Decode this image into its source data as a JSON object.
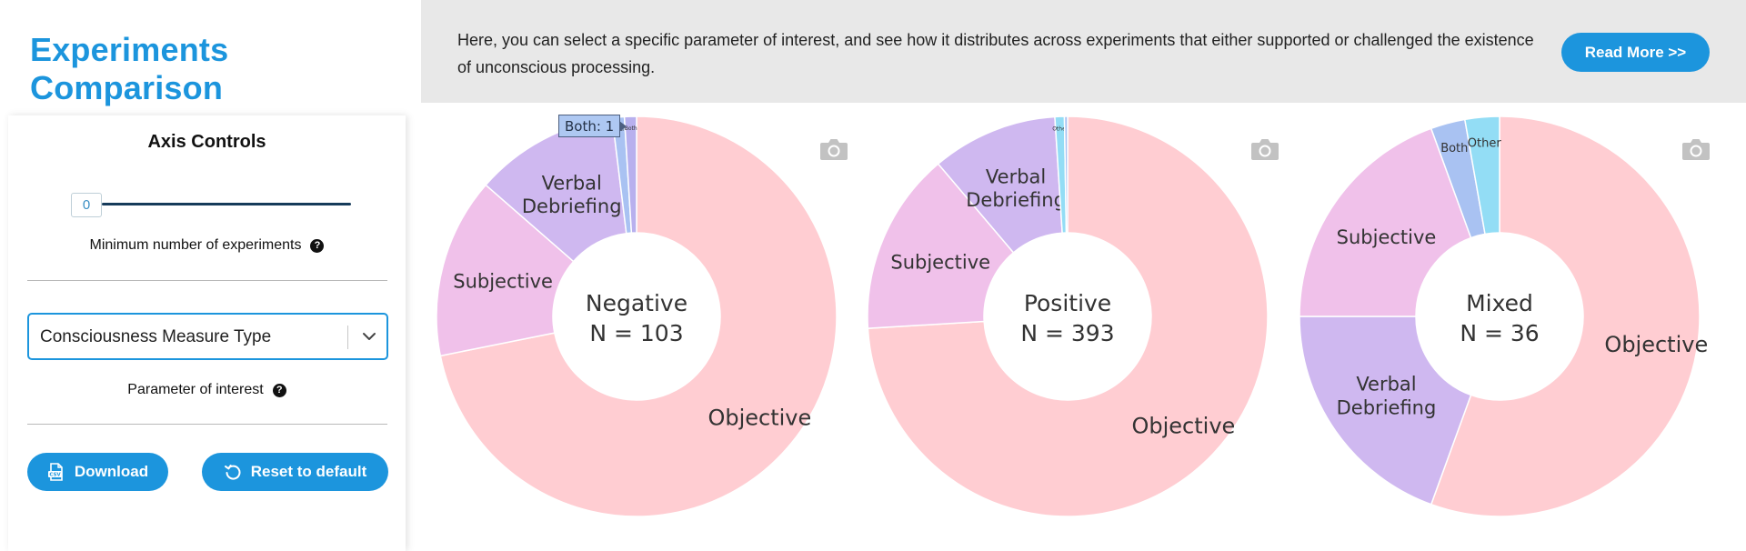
{
  "header": {
    "title": "Experiments Comparison",
    "intro": "Here, you can select a specific parameter of interest, and see how it distributes across experiments that either supported or challenged the existence of unconscious processing.",
    "read_more_label": "Read More >>"
  },
  "sidebar": {
    "axis_controls_title": "Axis Controls",
    "min_experiments_value": "0",
    "min_experiments_label": "Minimum number of experiments",
    "parameter_select_value": "Consciousness Measure Type",
    "parameter_label": "Parameter of interest",
    "help_glyph": "?",
    "download_label": "Download",
    "reset_label": "Reset to default"
  },
  "tooltip": {
    "text": "Both: 1"
  },
  "colors": {
    "accent": "#1c95dd",
    "objective": "#ffcdd2",
    "subjective": "#f0c1ea",
    "verbal_debriefing": "#cfb8f0",
    "both": "#a9c2f2",
    "other": "#93ddf5"
  },
  "chart_data": [
    {
      "type": "pie",
      "donut": true,
      "center_title": "Negative",
      "center_n": "N = 103",
      "slices": [
        {
          "label": "Objective",
          "display": "Objective",
          "value": 74,
          "color": "#ffcdd2"
        },
        {
          "label": "Subjective",
          "display": "Subjective",
          "value": 15,
          "color": "#f0c1ea"
        },
        {
          "label": "Verbal Debriefing",
          "display": "Verbal\nDebriefing",
          "value": 12,
          "color": "#cfb8f0"
        },
        {
          "label": "Both",
          "display": "Both",
          "value": 1,
          "color": "#a9c2f2"
        },
        {
          "label": "Both",
          "display": "Both",
          "value": 1,
          "color": "#b8b0ee"
        }
      ]
    },
    {
      "type": "pie",
      "donut": true,
      "center_title": "Positive",
      "center_n": "N = 393",
      "slices": [
        {
          "label": "Objective",
          "display": "Objective",
          "value": 291,
          "color": "#ffcdd2"
        },
        {
          "label": "Subjective",
          "display": "Subjective",
          "value": 58,
          "color": "#f0c1ea"
        },
        {
          "label": "Verbal Debriefing",
          "display": "Verbal\nDebriefing",
          "value": 40,
          "color": "#cfb8f0"
        },
        {
          "label": "Other",
          "display": "Other",
          "value": 3,
          "color": "#93ddf5"
        },
        {
          "label": "Both",
          "display": "",
          "value": 1,
          "color": "#a9c2f2"
        }
      ]
    },
    {
      "type": "pie",
      "donut": true,
      "center_title": "Mixed",
      "center_n": "N = 36",
      "slices": [
        {
          "label": "Objective",
          "display": "Objective",
          "value": 20,
          "color": "#ffcdd2"
        },
        {
          "label": "Verbal Debriefing",
          "display": "Verbal\nDebriefing",
          "value": 7,
          "color": "#cfb8f0"
        },
        {
          "label": "Subjective",
          "display": "Subjective",
          "value": 7,
          "color": "#f0c1ea"
        },
        {
          "label": "Both",
          "display": "Both",
          "value": 1,
          "color": "#a9c2f2"
        },
        {
          "label": "Other",
          "display": "Other",
          "value": 1,
          "color": "#93ddf5"
        }
      ]
    }
  ]
}
